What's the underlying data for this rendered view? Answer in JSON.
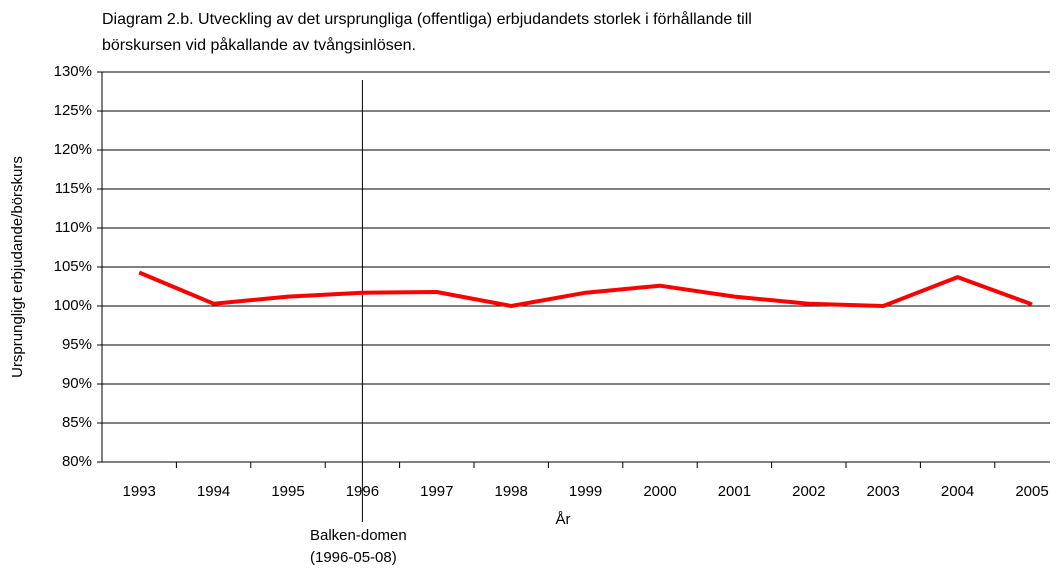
{
  "chart_data": {
    "type": "line",
    "title": [
      "Diagram 2.b. Utveckling av det ursprungliga (offentliga) erbjudandets storlek i förhållande till",
      "börskursen vid påkallande av tvångsinlösen."
    ],
    "ylabel": "Ursprungligt erbjudande/börskurs",
    "xlabel": "År",
    "categories": [
      "1993",
      "1994",
      "1995",
      "1996",
      "1997",
      "1998",
      "1999",
      "2000",
      "2001",
      "2002",
      "2003",
      "2004",
      "2005"
    ],
    "series": [
      {
        "name": "Erbjudande/börskurs",
        "color": "#ff0000",
        "values": [
          104.3,
          100.3,
          101.2,
          101.7,
          101.8,
          100.0,
          101.7,
          102.6,
          101.2,
          100.3,
          100.0,
          103.7,
          100.2
        ]
      }
    ],
    "ylim": [
      80,
      130
    ],
    "yticks": [
      {
        "value": 80,
        "label": "80%"
      },
      {
        "value": 85,
        "label": "85%"
      },
      {
        "value": 90,
        "label": "90%"
      },
      {
        "value": 95,
        "label": "95%"
      },
      {
        "value": 100,
        "label": "100%"
      },
      {
        "value": 105,
        "label": "105%"
      },
      {
        "value": 110,
        "label": "110%"
      },
      {
        "value": 115,
        "label": "115%"
      },
      {
        "value": 120,
        "label": "120%"
      },
      {
        "value": 125,
        "label": "125%"
      },
      {
        "value": 130,
        "label": "130%"
      }
    ],
    "grid": true,
    "annotation": {
      "at": "1996",
      "label": "Balken-domen",
      "date": "(1996-05-08)"
    }
  }
}
